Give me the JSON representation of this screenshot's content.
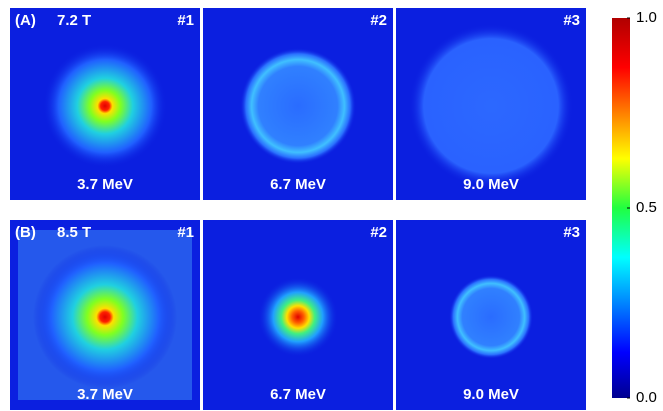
{
  "figure": {
    "rows": [
      {
        "label": "(A)",
        "field": "7.2 T",
        "panels": [
          {
            "number": "#1",
            "energy": "3.7 MeV"
          },
          {
            "number": "#2",
            "energy": "6.7 MeV"
          },
          {
            "number": "#3",
            "energy": "9.0 MeV"
          }
        ]
      },
      {
        "label": "(B)",
        "field": "8.5 T",
        "panels": [
          {
            "number": "#1",
            "energy": "3.7 MeV"
          },
          {
            "number": "#2",
            "energy": "6.7 MeV"
          },
          {
            "number": "#3",
            "energy": "9.0 MeV"
          }
        ]
      }
    ],
    "colorbar": {
      "range": [
        0,
        1
      ],
      "ticks": [
        {
          "value": 0,
          "label": "0.0"
        },
        {
          "value": 0.5,
          "label": "0.5"
        },
        {
          "value": 1,
          "label": "1.0"
        }
      ]
    }
  }
}
